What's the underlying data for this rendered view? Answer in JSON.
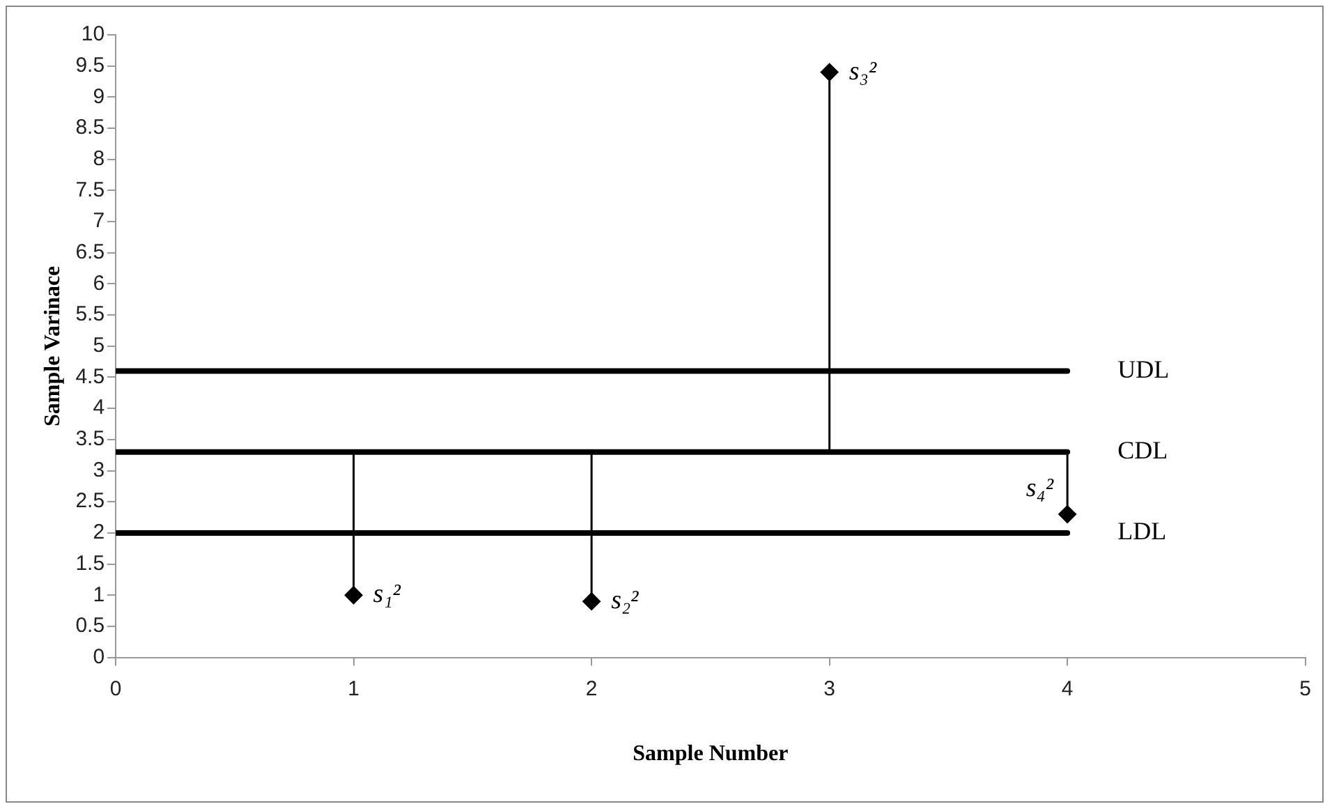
{
  "chart_data": {
    "type": "lollipop",
    "xlabel": "Sample Number",
    "ylabel": "Sample Varinace",
    "xlim": [
      0,
      5
    ],
    "xticks": [
      0,
      1,
      2,
      3,
      4,
      5
    ],
    "ylim": [
      0,
      10
    ],
    "yticks": [
      0,
      0.5,
      1,
      1.5,
      2,
      2.5,
      3,
      3.5,
      4,
      4.5,
      5,
      5.5,
      6,
      6.5,
      7,
      7.5,
      8,
      8.5,
      9,
      9.5,
      10
    ],
    "grid": false,
    "legend": false,
    "series": [
      {
        "type": "line",
        "name": "UDL",
        "color": "#000000",
        "marker": "none",
        "x": [
          0,
          4
        ],
        "values": [
          4.6,
          4.6
        ]
      },
      {
        "type": "line",
        "name": "CDL",
        "color": "#000000",
        "marker": "none",
        "x": [
          0,
          4
        ],
        "values": [
          3.3,
          3.3
        ]
      },
      {
        "type": "line",
        "name": "LDL",
        "color": "#000000",
        "marker": "none",
        "x": [
          0,
          4
        ],
        "values": [
          2.0,
          2.0
        ]
      },
      {
        "color": "#000000",
        "marker": "diamond",
        "x": [
          1,
          2,
          3,
          4
        ],
        "values": [
          1.0,
          0.9,
          9.4,
          2.3
        ],
        "errors": [
          [
            1.0,
            3.3
          ],
          [
            0.9,
            3.3
          ],
          [
            3.3,
            9.4
          ],
          [
            2.3,
            3.3
          ]
        ]
      }
    ],
    "annotations": [
      {
        "text": "s₁²",
        "x": 1,
        "y": 1.0
      },
      {
        "text": "s₂²",
        "x": 2,
        "y": 0.9
      },
      {
        "text": "s₃²",
        "x": 3,
        "y": 9.4
      },
      {
        "text": "s₄²",
        "x": 4,
        "y": 2.3
      }
    ]
  }
}
